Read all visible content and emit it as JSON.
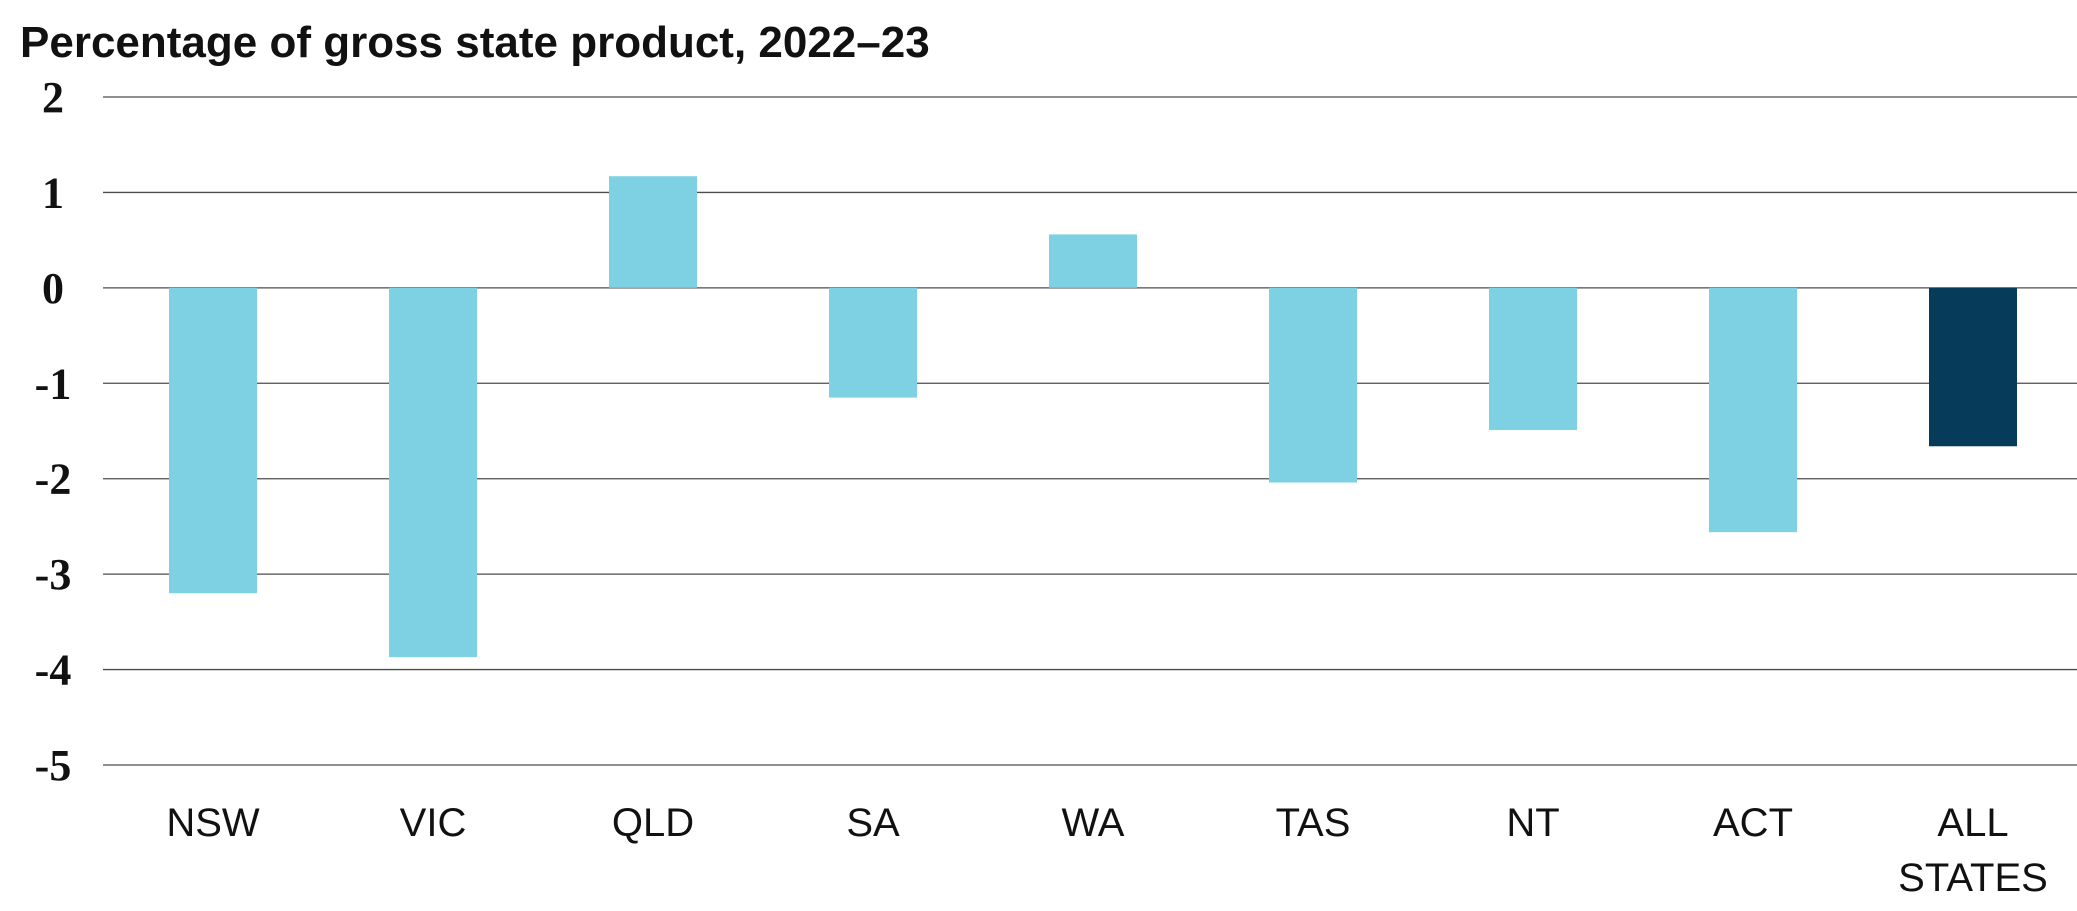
{
  "chart_data": {
    "type": "bar",
    "title": "Percentage of gross state product, 2022–23",
    "xlabel": "",
    "ylabel": "",
    "ylim": [
      -5,
      2
    ],
    "yticks": [
      "2",
      "1",
      "0",
      "-1",
      "-2",
      "-3",
      "-4",
      "-5"
    ],
    "ytick_values": [
      2,
      1,
      0,
      -1,
      -2,
      -3,
      -4,
      -5
    ],
    "grid": true,
    "legend": "none",
    "categories": [
      [
        "NSW"
      ],
      [
        "VIC"
      ],
      [
        "QLD"
      ],
      [
        "SA"
      ],
      [
        "WA"
      ],
      [
        "TAS"
      ],
      [
        "NT"
      ],
      [
        "ACT"
      ],
      [
        "ALL",
        "STATES"
      ]
    ],
    "values": [
      -3.2,
      -3.87,
      1.17,
      -1.15,
      0.56,
      -2.04,
      -1.49,
      -2.56,
      -1.66
    ],
    "colors": {
      "state": "#7dd1e2",
      "total": "#063b5a"
    },
    "highlight_index": 8
  }
}
